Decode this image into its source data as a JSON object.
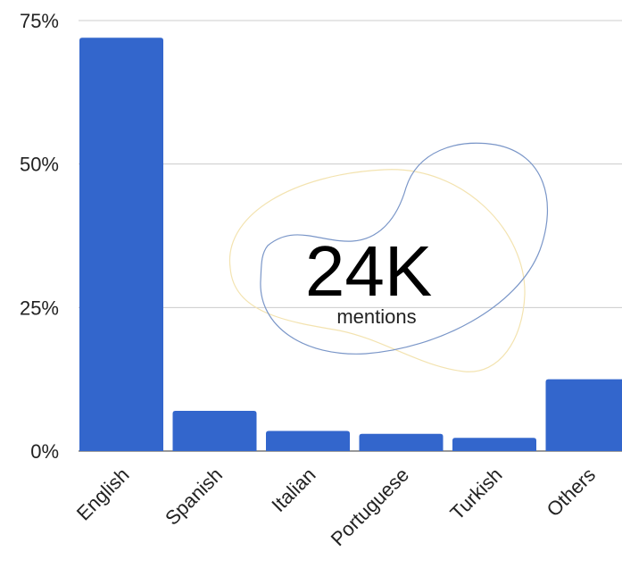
{
  "chart_data": {
    "type": "bar",
    "categories": [
      "English",
      "Spanish",
      "Italian",
      "Portuguese",
      "Turkish",
      "Others"
    ],
    "values": [
      72,
      7,
      3.5,
      3,
      2.3,
      12.5
    ],
    "yticks": [
      {
        "value": 0,
        "label": "0%"
      },
      {
        "value": 25,
        "label": "25%"
      },
      {
        "value": 50,
        "label": "50%"
      },
      {
        "value": 75,
        "label": "75%"
      }
    ],
    "ylim": [
      0,
      75
    ],
    "grid": true,
    "annotation": {
      "value": "24K",
      "label": "mentions"
    },
    "colors": {
      "bar": "#3366cc",
      "grid": "#cccccc",
      "text": "#222222",
      "blob_blue": "#7a96c8",
      "blob_yellow": "#f3e3b0"
    }
  }
}
